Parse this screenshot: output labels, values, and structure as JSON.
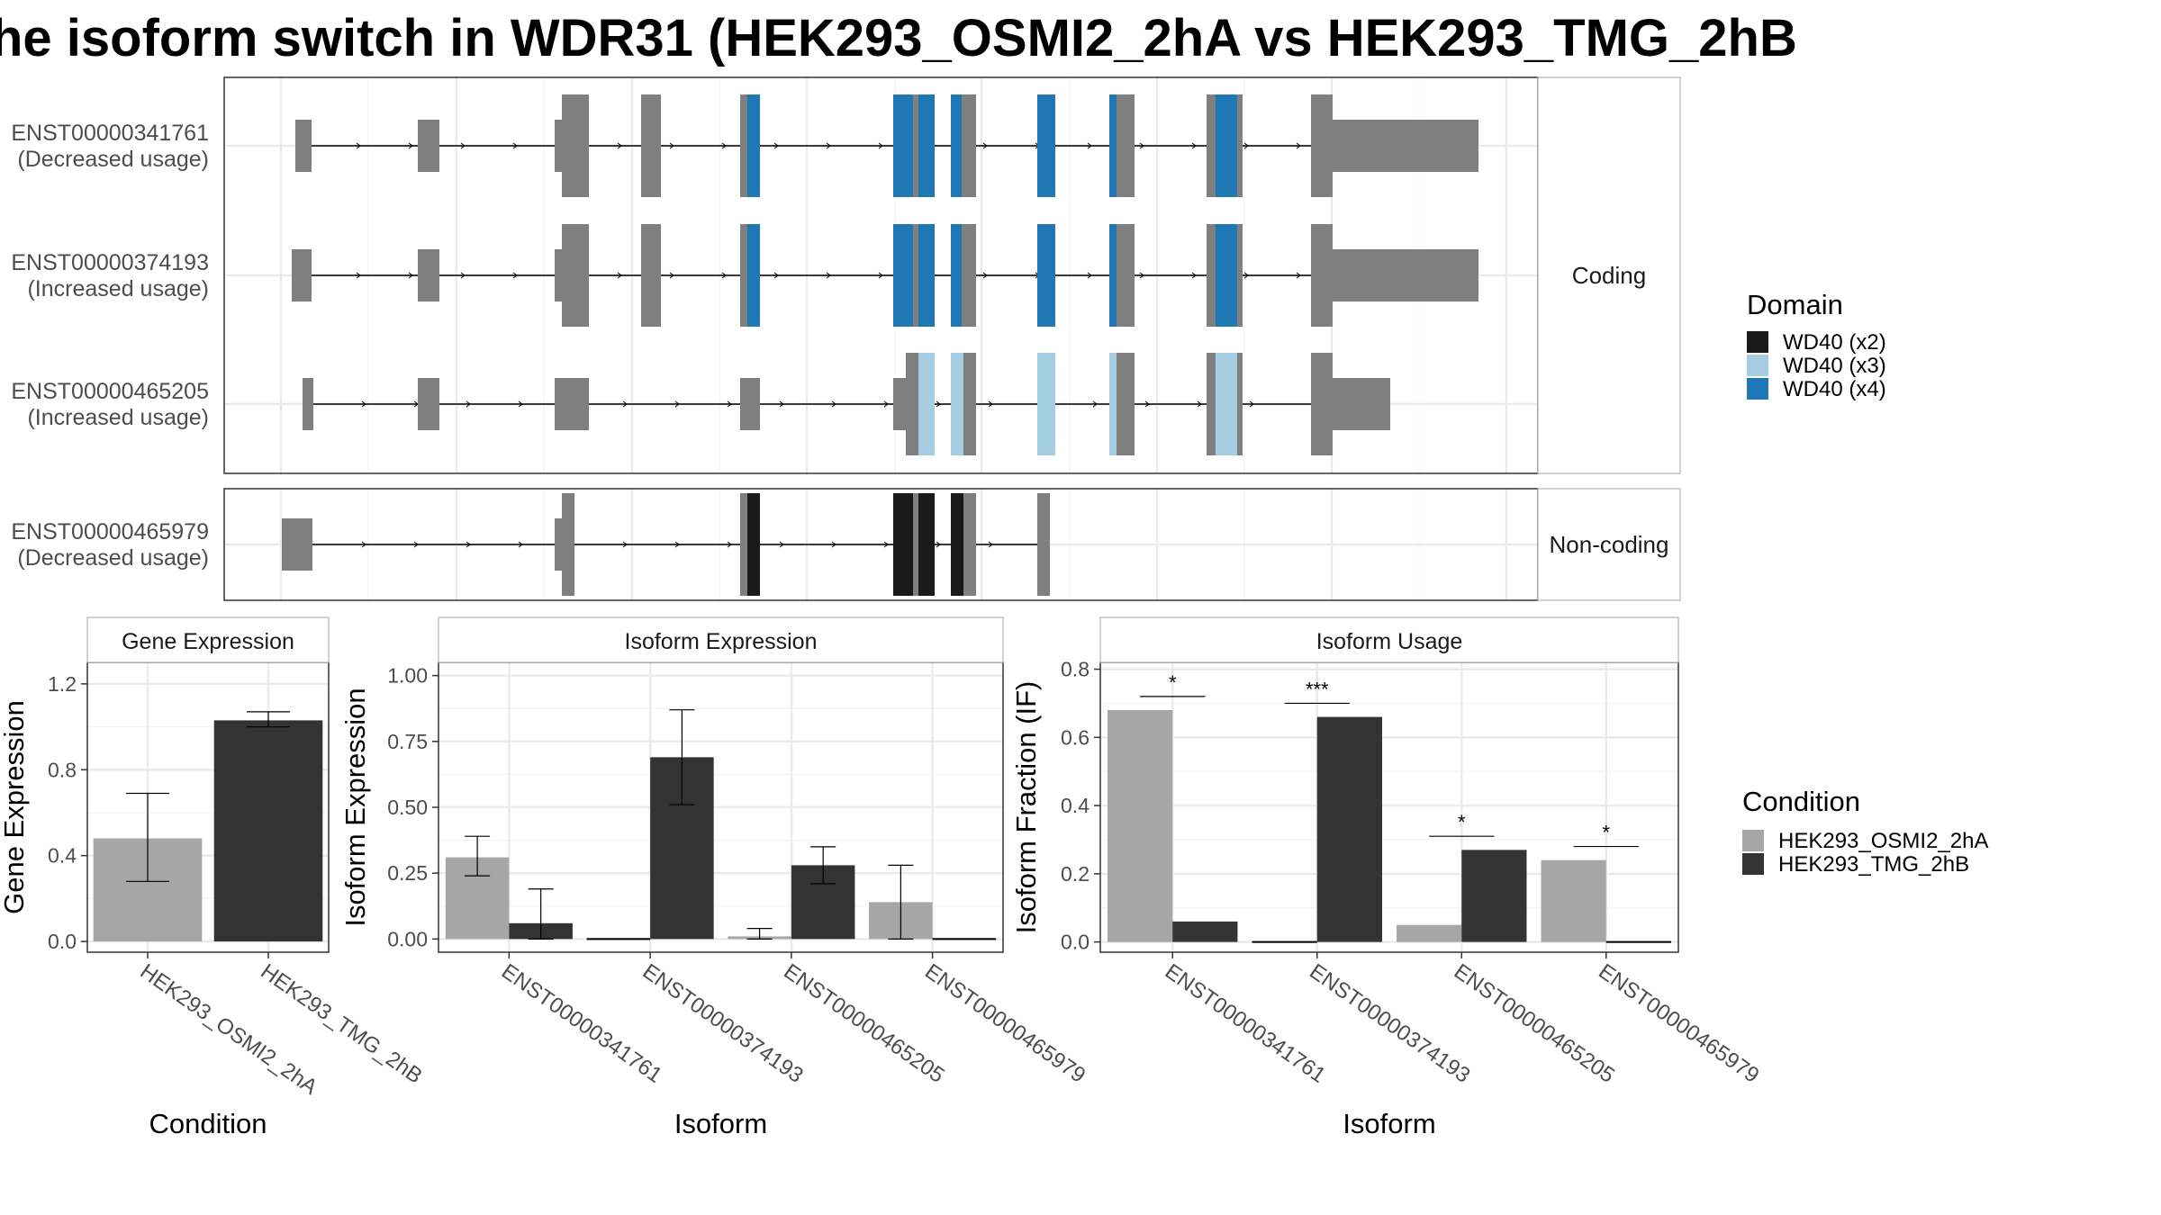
{
  "title": "he isoform switch in WDR31 (HEK293_OSMI2_2hA vs HEK293_TMG_2hB",
  "colors": {
    "exon": "#7f7f7f",
    "wd40_x2": "#1a1a1a",
    "wd40_x3": "#a6cee3",
    "wd40_x4": "#1f78b4",
    "cond_a": "#a6a6a6",
    "cond_b": "#333333"
  },
  "structure": {
    "facets": [
      "Coding",
      "Non-coding"
    ],
    "transcripts": [
      {
        "id": "ENST00000341761",
        "usage": "(Decreased usage)",
        "facet": 0
      },
      {
        "id": "ENST00000374193",
        "usage": "(Increased usage)",
        "facet": 0
      },
      {
        "id": "ENST00000465205",
        "usage": "(Increased usage)",
        "facet": 0
      },
      {
        "id": "ENST00000465979",
        "usage": "(Decreased usage)",
        "facet": 1
      }
    ]
  },
  "domain_legend": {
    "title": "Domain",
    "items": [
      {
        "label": "WD40 (x2)",
        "color": "#1a1a1a"
      },
      {
        "label": "WD40 (x3)",
        "color": "#a6cee3"
      },
      {
        "label": "WD40 (x4)",
        "color": "#1f78b4"
      }
    ]
  },
  "condition_legend": {
    "title": "Condition",
    "items": [
      {
        "label": "HEK293_OSMI2_2hA",
        "color": "#a6a6a6"
      },
      {
        "label": "HEK293_TMG_2hB",
        "color": "#333333"
      }
    ]
  },
  "chart_data": [
    {
      "type": "bar",
      "title": "Gene Expression",
      "xlabel": "Condition",
      "ylabel": "Gene Expression",
      "ylim": [
        -0.05,
        1.3
      ],
      "yticks": [
        0.0,
        0.4,
        0.8,
        1.2
      ],
      "ytick_labels": [
        "0.0",
        "0.4",
        "0.8",
        "1.2"
      ],
      "categories": [
        "HEK293_OSMI2_2hA",
        "HEK293_TMG_2hB"
      ],
      "values": [
        0.48,
        1.03
      ],
      "errors": [
        [
          0.28,
          0.69
        ],
        [
          1.0,
          1.07
        ]
      ]
    },
    {
      "type": "bar",
      "title": "Isoform Expression",
      "xlabel": "Isoform",
      "ylabel": "Isoform Expression",
      "ylim": [
        -0.05,
        1.05
      ],
      "yticks": [
        0.0,
        0.25,
        0.5,
        0.75,
        1.0
      ],
      "ytick_labels": [
        "0.00",
        "0.25",
        "0.50",
        "0.75",
        "1.00"
      ],
      "categories": [
        "ENST00000341761",
        "ENST00000374193",
        "ENST00000465205",
        "ENST00000465979"
      ],
      "series": [
        {
          "name": "HEK293_OSMI2_2hA",
          "values": [
            0.31,
            0.0,
            0.01,
            0.14
          ],
          "errors": [
            [
              0.24,
              0.39
            ],
            null,
            [
              0.0,
              0.04
            ],
            [
              0.0,
              0.28
            ]
          ]
        },
        {
          "name": "HEK293_TMG_2hB",
          "values": [
            0.06,
            0.69,
            0.28,
            0.0
          ],
          "errors": [
            [
              0.0,
              0.19
            ],
            [
              0.51,
              0.87
            ],
            [
              0.21,
              0.35
            ],
            null
          ]
        }
      ]
    },
    {
      "type": "bar",
      "title": "Isoform Usage",
      "xlabel": "Isoform",
      "ylabel": "Isoform Fraction (IF)",
      "ylim": [
        -0.03,
        0.82
      ],
      "yticks": [
        0.0,
        0.2,
        0.4,
        0.6,
        0.8
      ],
      "ytick_labels": [
        "0.0",
        "0.2",
        "0.4",
        "0.6",
        "0.8"
      ],
      "categories": [
        "ENST00000341761",
        "ENST00000374193",
        "ENST00000465205",
        "ENST00000465979"
      ],
      "series": [
        {
          "name": "HEK293_OSMI2_2hA",
          "values": [
            0.68,
            0.0,
            0.05,
            0.24
          ]
        },
        {
          "name": "HEK293_TMG_2hB",
          "values": [
            0.06,
            0.66,
            0.27,
            0.0
          ]
        }
      ],
      "significance": [
        {
          "label": "*",
          "y": 0.72
        },
        {
          "label": "***",
          "y": 0.7
        },
        {
          "label": "*",
          "y": 0.31
        },
        {
          "label": "*",
          "y": 0.28
        }
      ]
    }
  ]
}
